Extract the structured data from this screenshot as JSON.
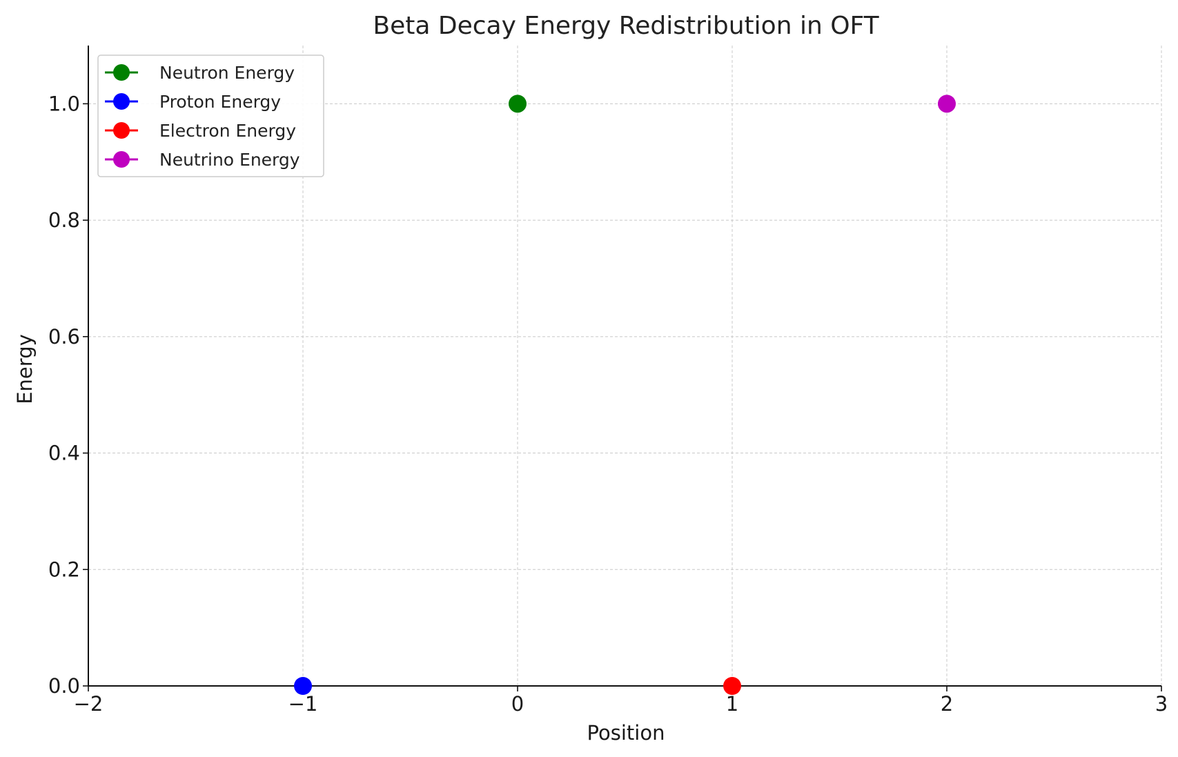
{
  "chart_data": {
    "type": "scatter",
    "title": "Beta Decay Energy Redistribution in OFT",
    "xlabel": "Position",
    "ylabel": "Energy",
    "xlim": [
      -2,
      3
    ],
    "ylim": [
      0,
      1.1
    ],
    "xticks": [
      -2,
      -1,
      0,
      1,
      2,
      3
    ],
    "xtick_labels": [
      "−2",
      "−1",
      "0",
      "1",
      "2",
      "3"
    ],
    "yticks": [
      0,
      0.2,
      0.4,
      0.6,
      0.8,
      1.0
    ],
    "ytick_labels": [
      "0.0",
      "0.2",
      "0.4",
      "0.6",
      "0.8",
      "1.0"
    ],
    "grid": true,
    "legend_position": "top-left",
    "series": [
      {
        "name": "Neutron Energy",
        "color": "#008000",
        "x": [
          0
        ],
        "y": [
          1.0
        ]
      },
      {
        "name": "Proton Energy",
        "color": "#0000ff",
        "x": [
          -1
        ],
        "y": [
          0.0
        ]
      },
      {
        "name": "Electron Energy",
        "color": "#ff0000",
        "x": [
          1
        ],
        "y": [
          0.0
        ]
      },
      {
        "name": "Neutrino Energy",
        "color": "#bf00bf",
        "x": [
          2
        ],
        "y": [
          1.0
        ]
      }
    ]
  }
}
